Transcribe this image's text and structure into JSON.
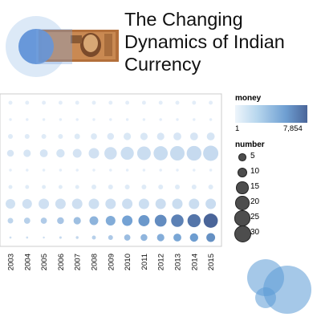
{
  "title_lines": [
    "The Changing",
    "Dynamics of Indian",
    "Currency"
  ],
  "colors": {
    "low": "#e8f1fa",
    "high": "#4a6599",
    "text": "#111111",
    "logo_outer": "#dce9f7",
    "logo_inner": "#5b8fd6"
  },
  "chart_data": {
    "type": "scatter",
    "title": "",
    "x": [
      "2003",
      "2004",
      "2005",
      "2006",
      "2007",
      "2008",
      "2009",
      "2010",
      "2011",
      "2012",
      "2013",
      "2014",
      "2015"
    ],
    "rows": 9,
    "series": [
      {
        "values": [
          2,
          2,
          2,
          2,
          2,
          2,
          2,
          2,
          2,
          2,
          2,
          2,
          2
        ],
        "money": [
          15,
          15,
          15,
          15,
          15,
          15,
          15,
          15,
          15,
          15,
          15,
          15,
          15
        ]
      },
      {
        "values": [
          1,
          1,
          1,
          1,
          1,
          1,
          1,
          1,
          1,
          1,
          1,
          1,
          1
        ],
        "money": [
          10,
          10,
          10,
          10,
          10,
          10,
          10,
          10,
          10,
          10,
          10,
          10,
          10
        ]
      },
      {
        "values": [
          3,
          3,
          3,
          3,
          4,
          5,
          6,
          7,
          7,
          7,
          8,
          8,
          8
        ],
        "money": [
          40,
          40,
          40,
          40,
          50,
          60,
          70,
          80,
          90,
          100,
          110,
          120,
          130
        ]
      },
      {
        "values": [
          6,
          7,
          8,
          9,
          10,
          14,
          20,
          22,
          24,
          26,
          27,
          28,
          30
        ],
        "money": [
          120,
          130,
          140,
          150,
          160,
          200,
          260,
          300,
          330,
          360,
          380,
          400,
          420
        ]
      },
      {
        "values": [
          1,
          1,
          1,
          1,
          1,
          1,
          1,
          1,
          1,
          1,
          1,
          1,
          1
        ],
        "money": [
          10,
          10,
          10,
          10,
          10,
          10,
          10,
          10,
          10,
          10,
          10,
          10,
          10
        ]
      },
      {
        "values": [
          2,
          2,
          2,
          2,
          2,
          3,
          3,
          3,
          3,
          3,
          3,
          3,
          3
        ],
        "money": [
          30,
          30,
          30,
          30,
          30,
          40,
          40,
          40,
          40,
          40,
          40,
          40,
          40
        ]
      },
      {
        "values": [
          12,
          12,
          14,
          14,
          14,
          14,
          14,
          14,
          14,
          14,
          14,
          14,
          14
        ],
        "money": [
          220,
          230,
          240,
          250,
          260,
          270,
          280,
          290,
          300,
          310,
          320,
          330,
          340
        ]
      },
      {
        "values": [
          4,
          5,
          5,
          6,
          7,
          10,
          12,
          14,
          16,
          18,
          20,
          22,
          26
        ],
        "money": [
          600,
          800,
          1000,
          1300,
          1700,
          2400,
          3000,
          3800,
          4500,
          5200,
          5900,
          6700,
          7854
        ]
      },
      {
        "values": [
          0.6,
          0.6,
          0.5,
          0.8,
          1,
          2,
          3,
          5,
          6,
          7,
          8,
          9,
          10
        ],
        "money": [
          250,
          280,
          300,
          400,
          500,
          800,
          1100,
          1800,
          2300,
          2900,
          3500,
          4200,
          5000
        ]
      }
    ],
    "legend": {
      "money_title": "money",
      "money_min": "1",
      "money_max": "7,854",
      "number_title": "number",
      "size_labels": [
        "5",
        "10",
        "15",
        "20",
        "25",
        "30"
      ],
      "size_values": [
        5,
        10,
        15,
        20,
        25,
        30
      ],
      "money_domain": [
        1,
        7854
      ],
      "placement": "right"
    }
  }
}
